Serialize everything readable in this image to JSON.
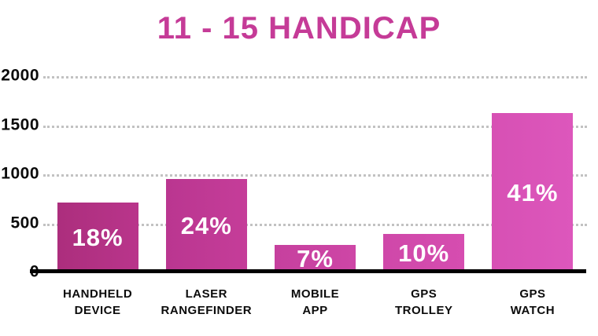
{
  "chart_data": {
    "type": "bar",
    "title": "11 - 15 HANDICAP",
    "categories": [
      "HANDHELD DEVICE",
      "LASER RANGEFINDER",
      "MOBILE APP",
      "GPS TROLLEY",
      "GPS WATCH"
    ],
    "category_lines": [
      [
        "HANDHELD",
        "DEVICE"
      ],
      [
        "LASER",
        "RANGEFINDER"
      ],
      [
        "MOBILE",
        "APP"
      ],
      [
        "GPS",
        "TROLLEY"
      ],
      [
        "GPS",
        "WATCH"
      ]
    ],
    "values": [
      710,
      950,
      280,
      395,
      1620
    ],
    "bar_labels": [
      "18%",
      "24%",
      "7%",
      "10%",
      "41%"
    ],
    "percent_values": [
      18,
      24,
      7,
      10,
      41
    ],
    "xlabel": "",
    "ylabel": "",
    "ylim": [
      0,
      2000
    ],
    "yticks": [
      0,
      500,
      1000,
      1500,
      2000
    ],
    "ytick_labels": [
      "0",
      "500",
      "1000",
      "1500",
      "2000"
    ],
    "grid": "horizontal dotted",
    "legend": "none",
    "bar_colors": [
      [
        "#ac2e7d",
        "#b9358b"
      ],
      [
        "#ba3690",
        "#c53d99"
      ],
      [
        "#c6409e",
        "#ce46a6"
      ],
      [
        "#cf48a9",
        "#d64db0"
      ],
      [
        "#d750b4",
        "#dd57bc"
      ]
    ],
    "colors": {
      "title": "#c53b97",
      "axis_text": "#0b0b0b",
      "gridline": "#c2c2c2",
      "baseline": "#000000",
      "bar_label_text": "#ffffff",
      "background": "#ffffff"
    }
  }
}
